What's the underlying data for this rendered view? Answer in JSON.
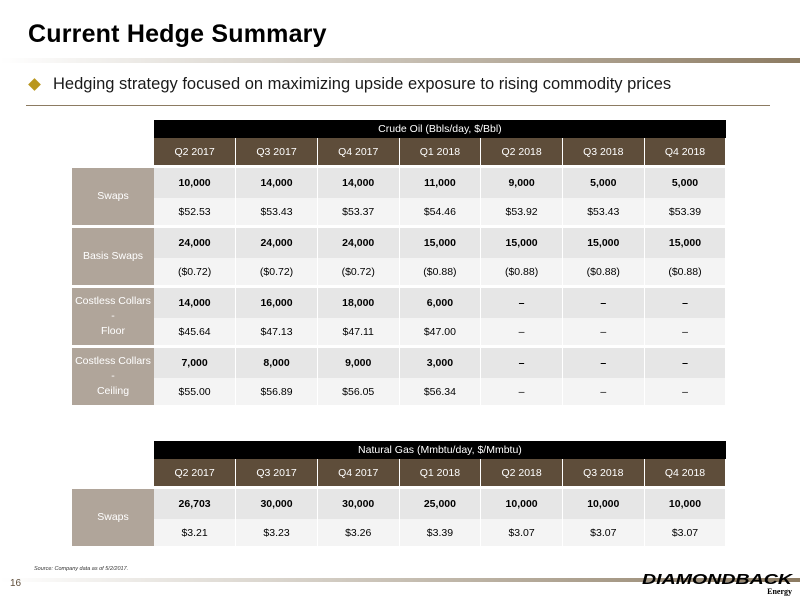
{
  "page": {
    "title": "Current Hedge Summary",
    "bullet": "Hedging strategy focused on maximizing upside exposure to rising commodity prices",
    "source": "Source: Company data as of 5/2/2017.",
    "page_number": "16",
    "logo_text": "DIAMONDBACK",
    "logo_subtext": "Energy"
  },
  "colors": {
    "header_brown": "#5e4d3a",
    "label_taupe": "#b0a59a",
    "accent_gold": "#b9961d"
  },
  "oil": {
    "title": "Crude Oil (Bbls/day, $/Bbl)",
    "quarters": [
      "Q2 2017",
      "Q3 2017",
      "Q4 2017",
      "Q1 2018",
      "Q2 2018",
      "Q3 2018",
      "Q4 2018"
    ],
    "groups": [
      {
        "label_lines": [
          "Swaps"
        ],
        "volumes": [
          "10,000",
          "14,000",
          "14,000",
          "11,000",
          "9,000",
          "5,000",
          "5,000"
        ],
        "prices": [
          "$52.53",
          "$53.43",
          "$53.37",
          "$54.46",
          "$53.92",
          "$53.43",
          "$53.39"
        ]
      },
      {
        "label_lines": [
          "Basis Swaps"
        ],
        "volumes": [
          "24,000",
          "24,000",
          "24,000",
          "15,000",
          "15,000",
          "15,000",
          "15,000"
        ],
        "prices": [
          "($0.72)",
          "($0.72)",
          "($0.72)",
          "($0.88)",
          "($0.88)",
          "($0.88)",
          "($0.88)"
        ]
      },
      {
        "label_lines": [
          "Costless Collars -",
          "Floor"
        ],
        "volumes": [
          "14,000",
          "16,000",
          "18,000",
          "6,000",
          "–",
          "–",
          "–"
        ],
        "prices": [
          "$45.64",
          "$47.13",
          "$47.11",
          "$47.00",
          "–",
          "–",
          "–"
        ]
      },
      {
        "label_lines": [
          "Costless Collars -",
          "Ceiling"
        ],
        "volumes": [
          "7,000",
          "8,000",
          "9,000",
          "3,000",
          "–",
          "–",
          "–"
        ],
        "prices": [
          "$55.00",
          "$56.89",
          "$56.05",
          "$56.34",
          "–",
          "–",
          "–"
        ]
      }
    ]
  },
  "gas": {
    "title": "Natural Gas (Mmbtu/day, $/Mmbtu)",
    "quarters": [
      "Q2 2017",
      "Q3 2017",
      "Q4 2017",
      "Q1 2018",
      "Q2 2018",
      "Q3 2018",
      "Q4 2018"
    ],
    "groups": [
      {
        "label_lines": [
          "Swaps"
        ],
        "volumes": [
          "26,703",
          "30,000",
          "30,000",
          "25,000",
          "10,000",
          "10,000",
          "10,000"
        ],
        "prices": [
          "$3.21",
          "$3.23",
          "$3.26",
          "$3.39",
          "$3.07",
          "$3.07",
          "$3.07"
        ]
      }
    ]
  }
}
